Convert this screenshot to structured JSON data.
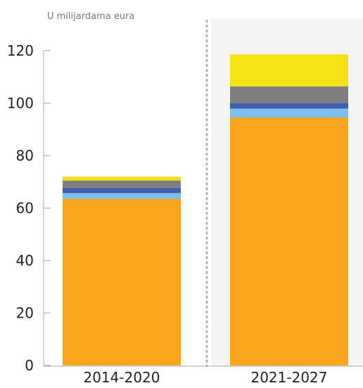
{
  "chart_data": {
    "type": "bar",
    "stacked": true,
    "ylabel": "U milijardama eura",
    "xlabel": "",
    "ylim": [
      0,
      120
    ],
    "yticks": [
      0,
      20,
      40,
      60,
      80,
      100,
      120
    ],
    "categories": [
      "2014-2020",
      "2021-2027"
    ],
    "series": [
      {
        "color": "#f9a61c",
        "values": [
          63.5,
          94.5
        ]
      },
      {
        "color": "#7fbfef",
        "values": [
          2.2,
          3.4
        ]
      },
      {
        "color": "#3f5fae",
        "values": [
          2.0,
          2.2
        ]
      },
      {
        "color": "#7f7f7f",
        "values": [
          2.8,
          6.3
        ]
      },
      {
        "color": "#f4e212",
        "values": [
          1.5,
          12.2
        ]
      }
    ],
    "highlight_category": "2021-2027",
    "highlight_color": "#f4f4f4",
    "divider": "dashed",
    "grid": false,
    "legend": "none"
  }
}
